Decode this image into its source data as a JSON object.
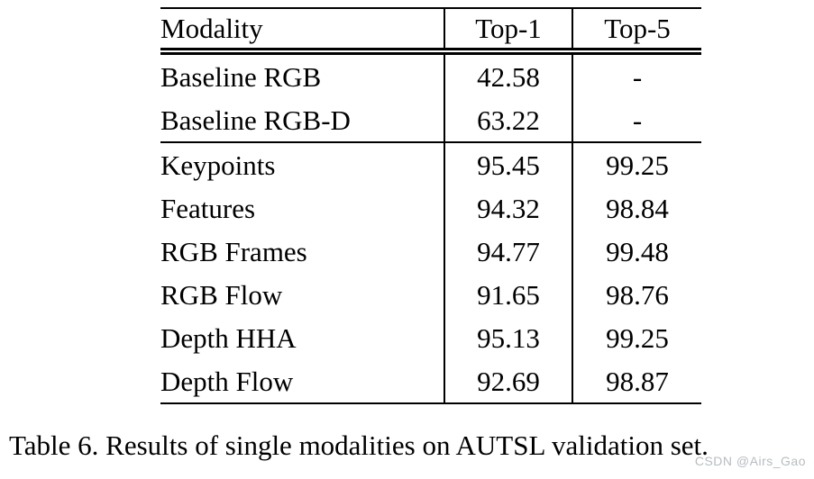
{
  "page": {
    "background": "#ffffff",
    "text_color": "#000000",
    "rule_color": "#000000",
    "watermark_color": "#b7bdc1"
  },
  "table": {
    "columns": [
      "Modality",
      "Top-1",
      "Top-5"
    ],
    "rows": [
      {
        "modality": "Baseline RGB",
        "top1": "42.58",
        "top5": "-",
        "bold": false
      },
      {
        "modality": "Baseline RGB-D",
        "top1": "63.22",
        "top5": "-",
        "bold": false
      },
      {
        "modality": "Keypoints",
        "top1": "95.45",
        "top5": "99.25",
        "bold": true
      },
      {
        "modality": "Features",
        "top1": "94.32",
        "top5": "98.84",
        "bold": false
      },
      {
        "modality": "RGB Frames",
        "top1": "94.77",
        "top5": "99.48",
        "bold": false
      },
      {
        "modality": "RGB Flow",
        "top1": "91.65",
        "top5": "98.76",
        "bold": false
      },
      {
        "modality": "Depth HHA",
        "top1": "95.13",
        "top5": "99.25",
        "bold": false
      },
      {
        "modality": "Depth Flow",
        "top1": "92.69",
        "top5": "98.87",
        "bold": false
      }
    ]
  },
  "caption": "Table 6. Results of single modalities on AUTSL validation set.",
  "watermark": "CSDN @Airs_Gao"
}
